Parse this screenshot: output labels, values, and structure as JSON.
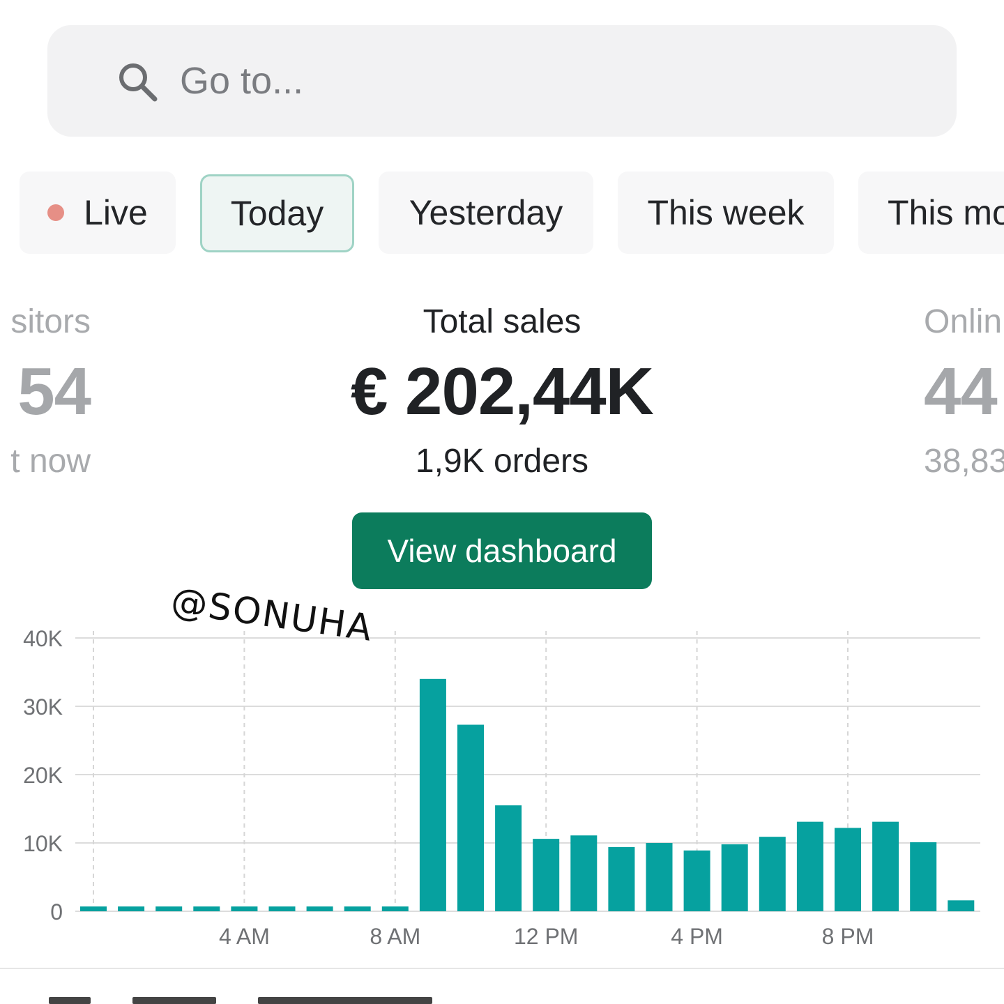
{
  "search": {
    "placeholder": "Go to...",
    "icon": "search-icon"
  },
  "tabs": [
    {
      "label": "Live",
      "indicator_color": "#e68f86"
    },
    {
      "label": "Today",
      "active": true
    },
    {
      "label": "Yesterday"
    },
    {
      "label": "This week"
    },
    {
      "label": "This mo"
    }
  ],
  "stats": {
    "left": {
      "label": "sitors",
      "value": "54",
      "sub": "t now"
    },
    "center": {
      "label": "Total sales",
      "value": "€ 202,44K",
      "sub": "1,9K orders"
    },
    "right": {
      "label": "Onlin",
      "value": "44",
      "sub": "38,83"
    }
  },
  "actions": {
    "view_dashboard": "View dashboard"
  },
  "watermark": "@SONUHA",
  "colors": {
    "accent": "#0c7c5c",
    "bar": "#06a19f",
    "live_dot": "#e68f86"
  },
  "chart_data": {
    "type": "bar",
    "categories": [
      "12 AM",
      "1 AM",
      "2 AM",
      "3 AM",
      "4 AM",
      "5 AM",
      "6 AM",
      "7 AM",
      "8 AM",
      "9 AM",
      "10 AM",
      "11 AM",
      "12 PM",
      "1 PM",
      "2 PM",
      "3 PM",
      "4 PM",
      "5 PM",
      "6 PM",
      "7 PM",
      "8 PM",
      "9 PM",
      "10 PM",
      "11 PM"
    ],
    "values": [
      700,
      700,
      700,
      700,
      700,
      700,
      700,
      700,
      700,
      34000,
      27300,
      15500,
      10600,
      11100,
      9400,
      10000,
      8900,
      9800,
      10900,
      13100,
      12200,
      13100,
      10100,
      1600
    ],
    "ylim": [
      0,
      40000
    ],
    "yticks": [
      0,
      10000,
      20000,
      30000,
      40000
    ],
    "ytick_labels": [
      "0",
      "10K",
      "20K",
      "30K",
      "40K"
    ],
    "xtick_labels": [
      "4 AM",
      "8 AM",
      "12 PM",
      "4 PM",
      "8 PM"
    ],
    "xtick_hours": [
      4,
      8,
      12,
      16,
      20
    ],
    "vgrid_hours": [
      0,
      4,
      8,
      12,
      16,
      20
    ],
    "grid": true,
    "title": "",
    "xlabel": "",
    "ylabel": ""
  }
}
